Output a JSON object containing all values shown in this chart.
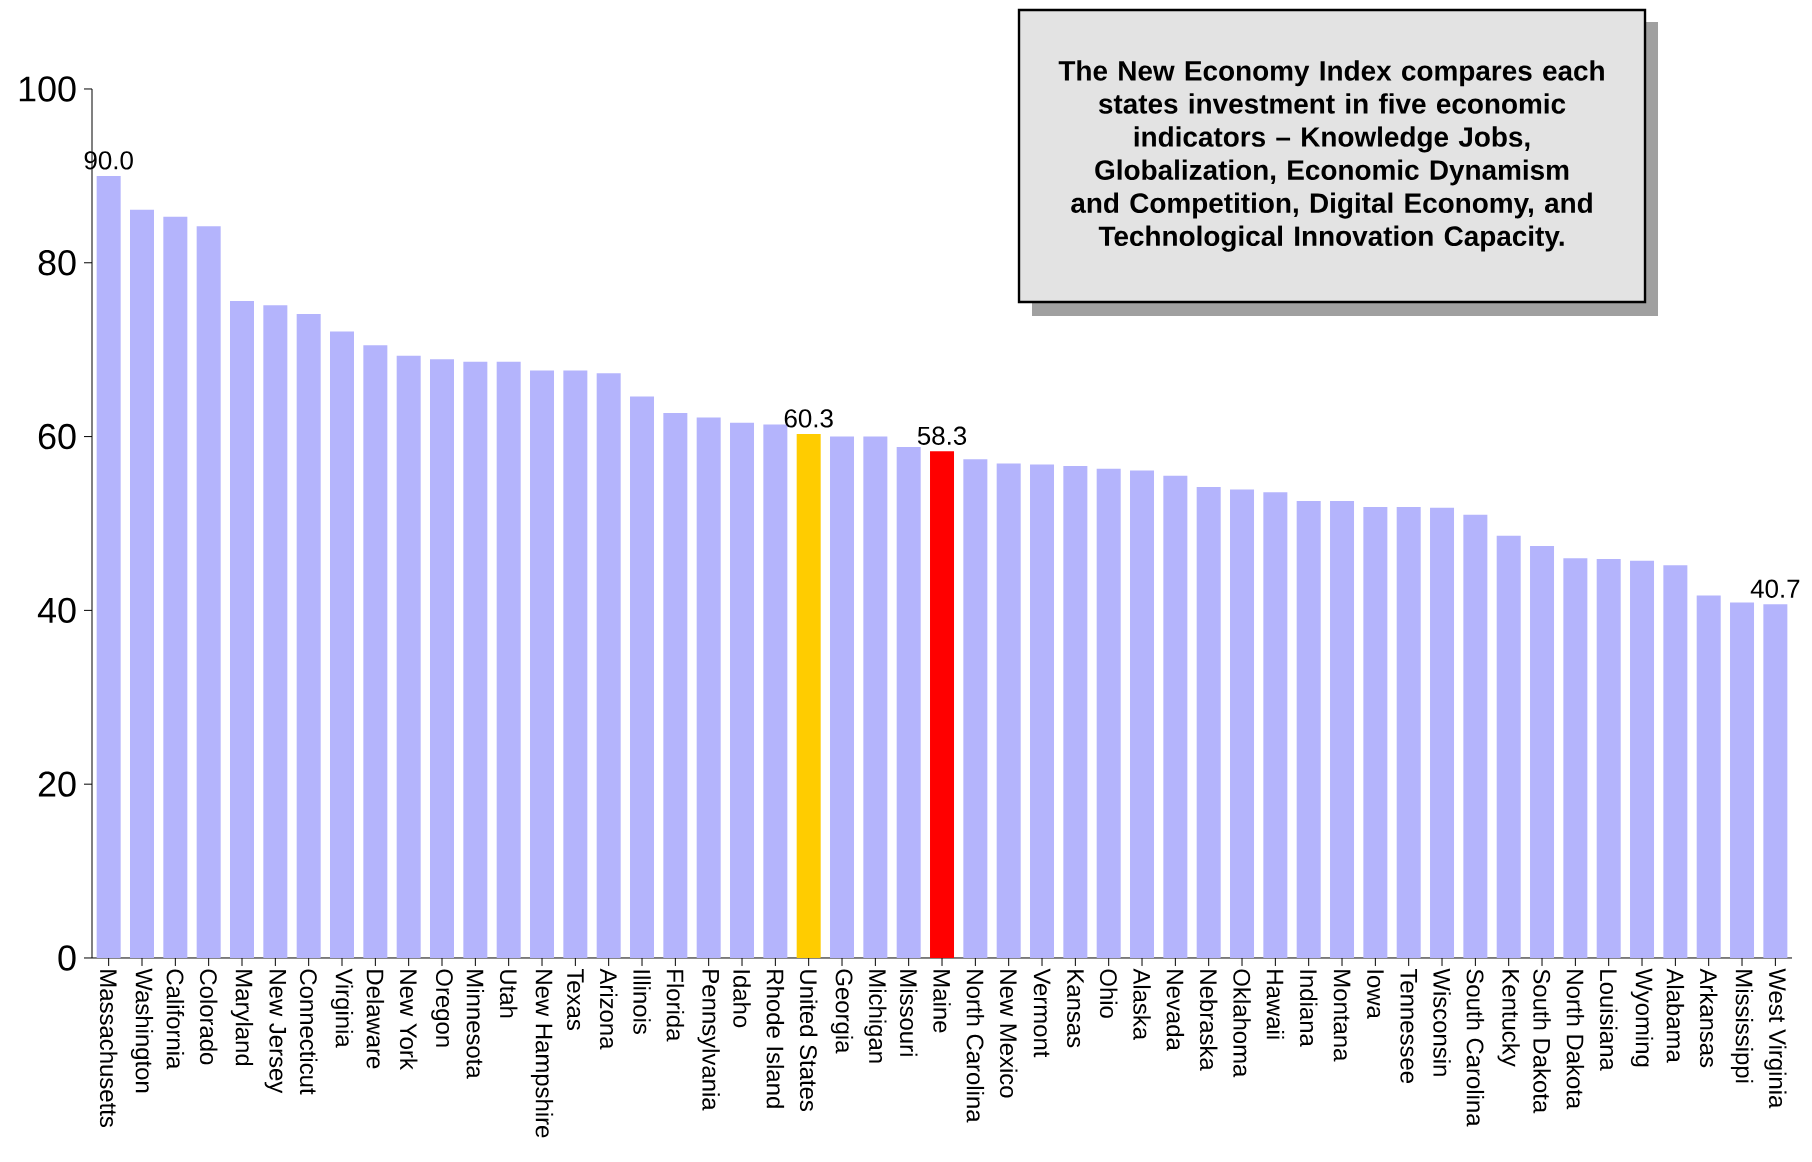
{
  "chart_data": {
    "type": "bar",
    "categories": [
      "Massachusetts",
      "Washington",
      "California",
      "Colorado",
      "Maryland",
      "New Jersey",
      "Connecticut",
      "Virginia",
      "Delaware",
      "New York",
      "Oregon",
      "Minnesota",
      "Utah",
      "New Hampshire",
      "Texas",
      "Arizona",
      "Illinois",
      "Florida",
      "Pennsylvania",
      "Idaho",
      "Rhode Island",
      "United States",
      "Georgia",
      "Michigan",
      "Missouri",
      "Maine",
      "North Carolina",
      "New Mexico",
      "Vermont",
      "Kansas",
      "Ohio",
      "Alaska",
      "Nevada",
      "Nebraska",
      "Oklahoma",
      "Hawaii",
      "Indiana",
      "Montana",
      "Iowa",
      "Tennessee",
      "Wisconsin",
      "South Carolina",
      "Kentucky",
      "South Dakota",
      "North Dakota",
      "Louisiana",
      "Wyoming",
      "Alabama",
      "Arkansas",
      "Mississippi",
      "West Virginia"
    ],
    "values": [
      90.0,
      86.1,
      85.3,
      84.2,
      75.6,
      75.1,
      74.1,
      72.1,
      70.5,
      69.3,
      68.9,
      68.6,
      68.6,
      67.6,
      67.6,
      67.3,
      64.6,
      62.7,
      62.2,
      61.6,
      61.4,
      60.3,
      60.0,
      60.0,
      58.8,
      58.3,
      57.4,
      56.9,
      56.8,
      56.6,
      56.3,
      56.1,
      55.5,
      54.2,
      53.9,
      53.6,
      52.6,
      52.6,
      51.9,
      51.9,
      51.8,
      51.0,
      48.6,
      47.4,
      46.0,
      45.9,
      45.7,
      45.2,
      41.7,
      40.9,
      40.7
    ],
    "colors": [
      "#b4b4fc",
      "#b4b4fc",
      "#b4b4fc",
      "#b4b4fc",
      "#b4b4fc",
      "#b4b4fc",
      "#b4b4fc",
      "#b4b4fc",
      "#b4b4fc",
      "#b4b4fc",
      "#b4b4fc",
      "#b4b4fc",
      "#b4b4fc",
      "#b4b4fc",
      "#b4b4fc",
      "#b4b4fc",
      "#b4b4fc",
      "#b4b4fc",
      "#b4b4fc",
      "#b4b4fc",
      "#b4b4fc",
      "#ffcc00",
      "#b4b4fc",
      "#b4b4fc",
      "#b4b4fc",
      "#ff0000",
      "#b4b4fc",
      "#b4b4fc",
      "#b4b4fc",
      "#b4b4fc",
      "#b4b4fc",
      "#b4b4fc",
      "#b4b4fc",
      "#b4b4fc",
      "#b4b4fc",
      "#b4b4fc",
      "#b4b4fc",
      "#b4b4fc",
      "#b4b4fc",
      "#b4b4fc",
      "#b4b4fc",
      "#b4b4fc",
      "#b4b4fc",
      "#b4b4fc",
      "#b4b4fc",
      "#b4b4fc",
      "#b4b4fc",
      "#b4b4fc",
      "#b4b4fc",
      "#b4b4fc",
      "#b4b4fc"
    ],
    "value_labels": [
      "90.0",
      null,
      null,
      null,
      null,
      null,
      null,
      null,
      null,
      null,
      null,
      null,
      null,
      null,
      null,
      null,
      null,
      null,
      null,
      null,
      null,
      "60.3",
      null,
      null,
      null,
      "58.3",
      null,
      null,
      null,
      null,
      null,
      null,
      null,
      null,
      null,
      null,
      null,
      null,
      null,
      null,
      null,
      null,
      null,
      null,
      null,
      null,
      null,
      null,
      null,
      null,
      "40.7"
    ],
    "ylim": [
      0,
      100
    ],
    "yticks": [
      0,
      20,
      40,
      60,
      80,
      100
    ],
    "annotations": [
      "The New Economy Index compares each states investment in five economic indicators – Knowledge Jobs, Globalization, Economic Dynamism and Competition, Digital Economy, and Technological Innovation Capacity."
    ]
  }
}
